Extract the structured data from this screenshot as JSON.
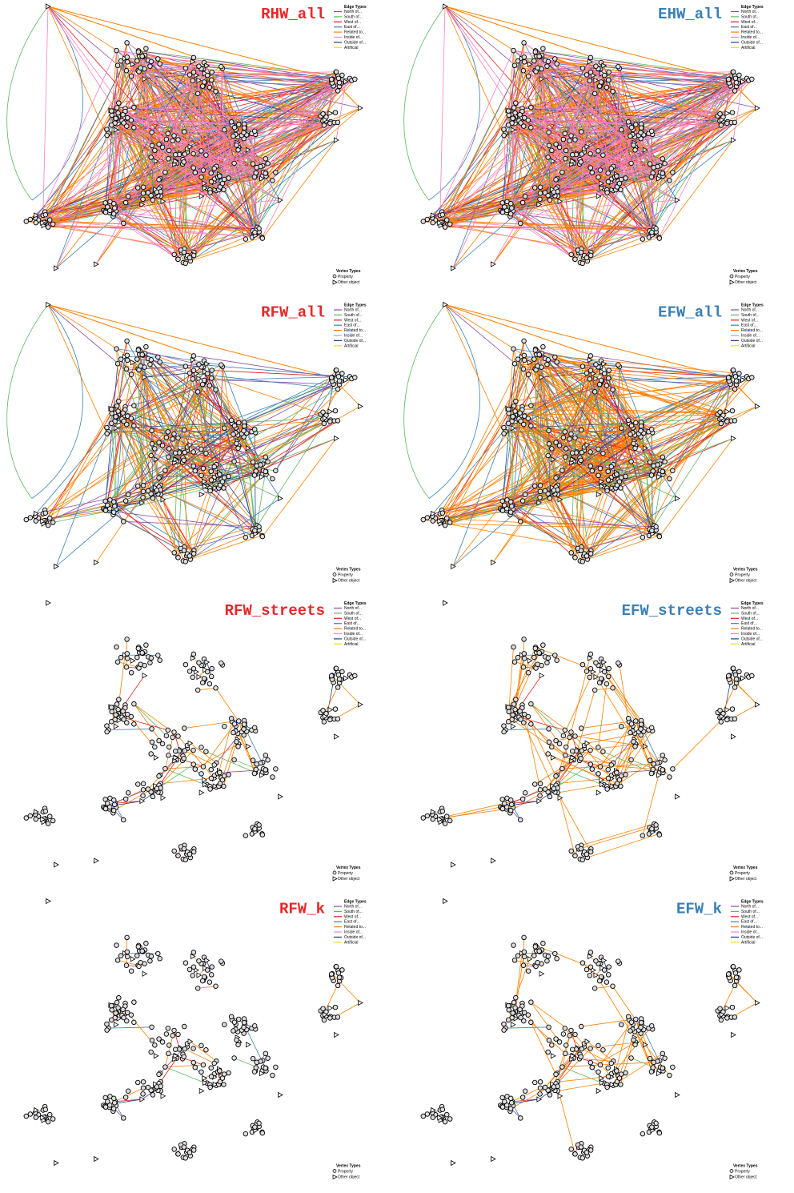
{
  "panels": [
    {
      "title": "RHW_all",
      "title_color": "#e8282a",
      "variant": "all"
    },
    {
      "title": "EHW_all",
      "title_color": "#3a7fb8",
      "variant": "all"
    },
    {
      "title": "RFW_all",
      "title_color": "#e8282a",
      "variant": "fw"
    },
    {
      "title": "EFW_all",
      "title_color": "#3a7fb8",
      "variant": "fw"
    },
    {
      "title": "RFW_streets",
      "title_color": "#e8282a",
      "variant": "streets"
    },
    {
      "title": "EFW_streets",
      "title_color": "#3a7fb8",
      "variant": "streets"
    },
    {
      "title": "RFW_k",
      "title_color": "#e8282a",
      "variant": "k"
    },
    {
      "title": "EFW_k",
      "title_color": "#3a7fb8",
      "variant": "k"
    }
  ],
  "legend": {
    "edge_title": "Edge Types",
    "edge_types": [
      {
        "label": "North of...",
        "color": "#8e4ba0"
      },
      {
        "label": "South of...",
        "color": "#5cb85c"
      },
      {
        "label": "West of...",
        "color": "#e41a1c"
      },
      {
        "label": "East of...",
        "color": "#377eb8"
      },
      {
        "label": "Related to...",
        "color": "#ff7f00"
      },
      {
        "label": "Inside of...",
        "color": "#f781bf"
      },
      {
        "label": "Outside of...",
        "color": "#1f3f8f"
      },
      {
        "label": "Artificial",
        "color": "#f0e000"
      }
    ],
    "vertex_title": "Vertex Types",
    "vertex_types": [
      "Property",
      "Other object"
    ]
  }
}
